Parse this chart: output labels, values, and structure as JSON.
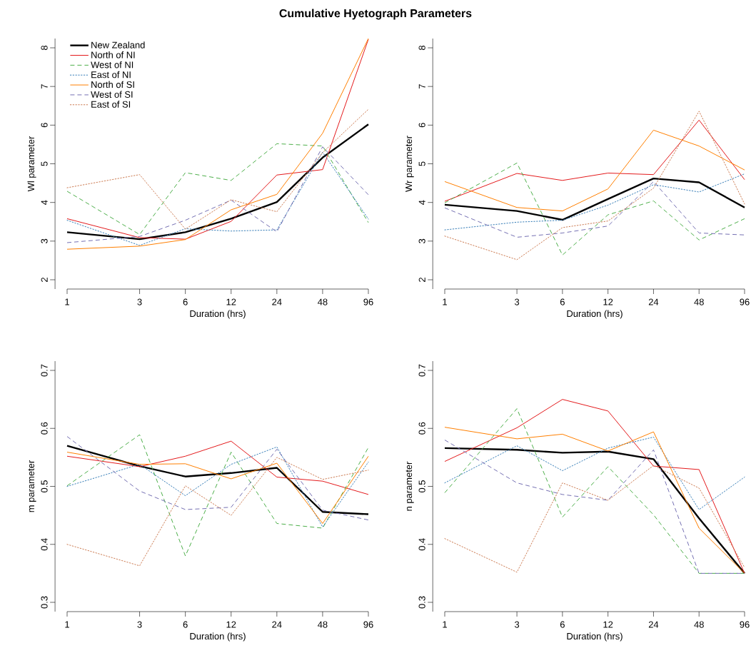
{
  "chart_data": [
    {
      "type": "line",
      "title": "Cumulative Hyetograph Parameters",
      "xlabel": "Duration (hrs)",
      "ylabel": "Wl parameter",
      "log": "x",
      "legend": "top left",
      "x": [
        1,
        3,
        6,
        12,
        24,
        48,
        96
      ],
      "xlim": [
        1,
        96
      ],
      "xticks": [
        1,
        3,
        6,
        12,
        24,
        48,
        96
      ],
      "ylim": [
        1.76,
        8.24
      ],
      "yticks": [
        2,
        3,
        4,
        5,
        6,
        7,
        8
      ],
      "series": [
        {
          "name": "New Zealand",
          "color": "#000000",
          "line_style": "solid",
          "values": [
            3.23,
            3.05,
            3.23,
            3.58,
            4.01,
            5.16,
            6.02
          ]
        },
        {
          "name": "North of NI",
          "color": "#e41a1c",
          "line_style": "solid",
          "values": [
            3.58,
            3.09,
            3.05,
            3.51,
            4.71,
            4.85,
            8.22
          ]
        },
        {
          "name": "West of NI",
          "color": "#4daf4a",
          "line_style": "dashed",
          "values": [
            4.29,
            3.17,
            4.77,
            4.57,
            5.52,
            5.46,
            3.48
          ]
        },
        {
          "name": "East of NI",
          "color": "#377eb8",
          "line_style": "dotted",
          "values": [
            3.54,
            2.89,
            3.32,
            3.26,
            3.29,
            5.3,
            3.57
          ]
        },
        {
          "name": "North of SI",
          "color": "#ff7f00",
          "line_style": "solid",
          "values": [
            2.79,
            2.87,
            3.04,
            3.81,
            4.21,
            5.79,
            8.24
          ]
        },
        {
          "name": "West of SI",
          "color": "#7570b3",
          "line_style": "dashed",
          "values": [
            2.96,
            3.12,
            3.54,
            4.06,
            3.24,
            5.44,
            4.2
          ]
        },
        {
          "name": "East of SI",
          "color": "#cc7a50",
          "line_style": "dotted",
          "values": [
            4.38,
            4.72,
            3.31,
            4.07,
            3.76,
            5.29,
            6.41
          ]
        }
      ]
    },
    {
      "type": "line",
      "xlabel": "Duration (hrs)",
      "ylabel": "Wr parameter",
      "log": "x",
      "x": [
        1,
        3,
        6,
        12,
        24,
        48,
        96
      ],
      "xlim": [
        1,
        96
      ],
      "xticks": [
        1,
        3,
        6,
        12,
        24,
        48,
        96
      ],
      "ylim": [
        1.76,
        8.24
      ],
      "yticks": [
        2,
        3,
        4,
        5,
        6,
        7,
        8
      ],
      "series": [
        {
          "color": "#000000",
          "line_style": "solid",
          "values": [
            3.94,
            3.78,
            3.55,
            4.09,
            4.62,
            4.52,
            3.87
          ]
        },
        {
          "color": "#e41a1c",
          "line_style": "solid",
          "values": [
            4.03,
            4.75,
            4.57,
            4.76,
            4.72,
            6.13,
            4.59
          ]
        },
        {
          "color": "#4daf4a",
          "line_style": "dashed",
          "values": [
            3.99,
            5.02,
            2.64,
            3.68,
            4.04,
            3.03,
            3.58
          ]
        },
        {
          "color": "#377eb8",
          "line_style": "dotted",
          "values": [
            3.29,
            3.49,
            3.54,
            3.93,
            4.46,
            4.27,
            4.74
          ]
        },
        {
          "color": "#ff7f00",
          "line_style": "solid",
          "values": [
            4.54,
            3.87,
            3.78,
            4.35,
            5.87,
            5.46,
            4.84
          ]
        },
        {
          "color": "#7570b3",
          "line_style": "dashed",
          "values": [
            3.86,
            3.1,
            3.21,
            3.39,
            4.54,
            3.21,
            3.16
          ]
        },
        {
          "color": "#cc7a50",
          "line_style": "dotted",
          "values": [
            3.13,
            2.52,
            3.35,
            3.52,
            4.37,
            6.36,
            3.96
          ]
        }
      ]
    },
    {
      "type": "line",
      "xlabel": "Duration (hrs)",
      "ylabel": "m parameter",
      "log": "x",
      "x": [
        1,
        3,
        6,
        12,
        24,
        48,
        96
      ],
      "xlim": [
        1,
        96
      ],
      "xticks": [
        1,
        3,
        6,
        12,
        24,
        48,
        96
      ],
      "ylim": [
        0.284,
        0.716
      ],
      "yticks": [
        0.3,
        0.4,
        0.5,
        0.6,
        0.7
      ],
      "series": [
        {
          "color": "#000000",
          "line_style": "solid",
          "values": [
            0.57,
            0.535,
            0.517,
            0.523,
            0.532,
            0.456,
            0.452
          ]
        },
        {
          "color": "#e41a1c",
          "line_style": "solid",
          "values": [
            0.552,
            0.534,
            0.552,
            0.578,
            0.516,
            0.509,
            0.486
          ]
        },
        {
          "color": "#4daf4a",
          "line_style": "dashed",
          "values": [
            0.501,
            0.589,
            0.38,
            0.559,
            0.436,
            0.428,
            0.567
          ]
        },
        {
          "color": "#377eb8",
          "line_style": "dotted",
          "values": [
            0.5,
            0.538,
            0.484,
            0.538,
            0.568,
            0.43,
            0.542
          ]
        },
        {
          "color": "#ff7f00",
          "line_style": "solid",
          "values": [
            0.559,
            0.538,
            0.539,
            0.513,
            0.54,
            0.436,
            0.552
          ]
        },
        {
          "color": "#7570b3",
          "line_style": "dashed",
          "values": [
            0.586,
            0.492,
            0.46,
            0.464,
            0.564,
            0.459,
            0.442
          ]
        },
        {
          "color": "#cc7a50",
          "line_style": "dotted",
          "values": [
            0.4,
            0.363,
            0.501,
            0.45,
            0.55,
            0.512,
            0.528
          ]
        }
      ]
    },
    {
      "type": "line",
      "xlabel": "Duration (hrs)",
      "ylabel": "n parameter",
      "log": "x",
      "x": [
        1,
        3,
        6,
        12,
        24,
        48,
        96
      ],
      "xlim": [
        1,
        96
      ],
      "xticks": [
        1,
        3,
        6,
        12,
        24,
        48,
        96
      ],
      "ylim": [
        0.284,
        0.716
      ],
      "yticks": [
        0.3,
        0.4,
        0.5,
        0.6,
        0.7
      ],
      "series": [
        {
          "color": "#000000",
          "line_style": "solid",
          "values": [
            0.566,
            0.563,
            0.558,
            0.56,
            0.547,
            0.445,
            0.35
          ]
        },
        {
          "color": "#e41a1c",
          "line_style": "solid",
          "values": [
            0.543,
            0.601,
            0.65,
            0.63,
            0.535,
            0.529,
            0.35
          ]
        },
        {
          "color": "#4daf4a",
          "line_style": "dashed",
          "values": [
            0.489,
            0.634,
            0.447,
            0.534,
            0.451,
            0.35,
            0.35
          ]
        },
        {
          "color": "#377eb8",
          "line_style": "dotted",
          "values": [
            0.506,
            0.57,
            0.527,
            0.566,
            0.585,
            0.46,
            0.516
          ]
        },
        {
          "color": "#ff7f00",
          "line_style": "solid",
          "values": [
            0.602,
            0.582,
            0.59,
            0.561,
            0.594,
            0.428,
            0.35
          ]
        },
        {
          "color": "#7570b3",
          "line_style": "dashed",
          "values": [
            0.58,
            0.506,
            0.486,
            0.476,
            0.563,
            0.35,
            0.35
          ]
        },
        {
          "color": "#cc7a50",
          "line_style": "dotted",
          "values": [
            0.41,
            0.352,
            0.506,
            0.476,
            0.536,
            0.497,
            0.36
          ]
        }
      ]
    }
  ]
}
